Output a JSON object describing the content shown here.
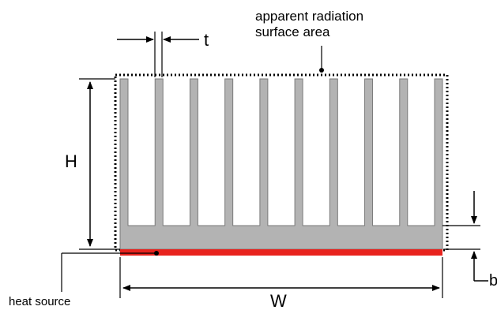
{
  "diagram": {
    "labels": {
      "radiation_line1": "apparent radiation",
      "radiation_line2": "surface area",
      "thickness": "t",
      "height": "H",
      "width": "W",
      "base": "b",
      "heat_source": "heat source"
    },
    "fin_count": 10,
    "colors": {
      "heatsink_fill": "#b3b3b3",
      "heatsink_stroke": "#7a7a7a",
      "heat_source": "#e8231e",
      "line": "#000000"
    }
  }
}
